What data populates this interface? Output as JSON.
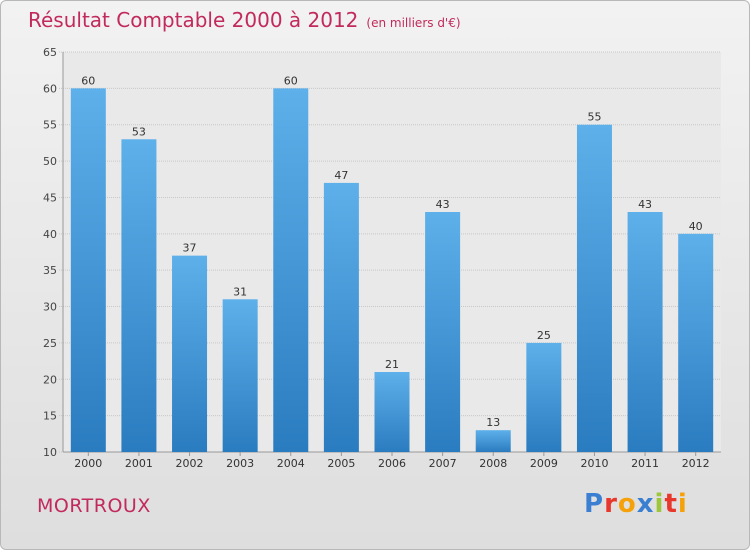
{
  "chart_data": {
    "type": "bar",
    "title": "Résultat Comptable 2000 à 2012",
    "unit_note": "(en milliers d'€)",
    "categories": [
      "2000",
      "2001",
      "2002",
      "2003",
      "2004",
      "2005",
      "2006",
      "2007",
      "2008",
      "2009",
      "2010",
      "2011",
      "2012"
    ],
    "values": [
      60,
      53,
      37,
      31,
      60,
      47,
      21,
      43,
      13,
      25,
      55,
      43,
      40
    ],
    "ylim": [
      10,
      65
    ],
    "yticks": [
      10,
      15,
      20,
      25,
      30,
      35,
      40,
      45,
      50,
      55,
      60,
      65
    ],
    "xlabel": "",
    "ylabel": "",
    "grid": true,
    "bar_color_top": "#5eb0ea",
    "bar_color_bottom": "#2a7cc0"
  },
  "footer": {
    "town": "MORTROUX",
    "logo_letters": [
      "P",
      "r",
      "o",
      "x",
      "i",
      "t",
      "i"
    ],
    "logo_colors": [
      "#3a7fd1",
      "#e8372b",
      "#f5a10b",
      "#3a7fd1",
      "#9dc63a",
      "#e8372b",
      "#f5a10b"
    ]
  },
  "colors": {
    "title": "#c22a5b",
    "grid": "#c8c8c8"
  }
}
